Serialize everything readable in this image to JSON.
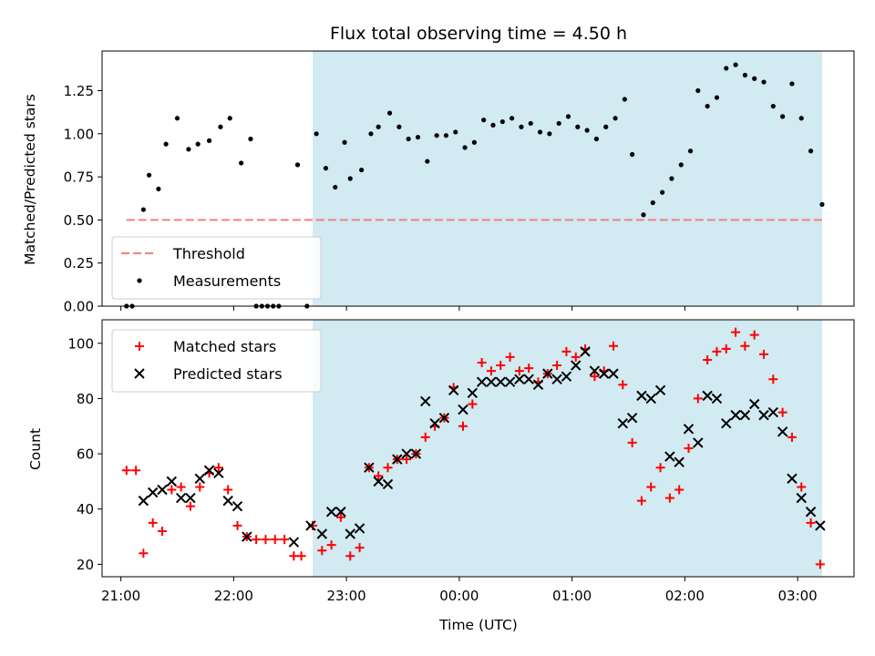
{
  "chart_data": [
    {
      "type": "scatter",
      "title": "Flux total observing time = 4.50 h",
      "ylabel": "Matched/Predicted stars",
      "xlabel": "",
      "xlim": [
        "20:50",
        "03:30"
      ],
      "ylim": [
        0,
        1.48
      ],
      "y_ticks": [
        "0.00",
        "0.25",
        "0.50",
        "0.75",
        "1.00",
        "1.25"
      ],
      "highlight_span": {
        "start": "22:42",
        "end": "03:13",
        "color": "#add8e6"
      },
      "legend_position": "lower-left",
      "threshold": {
        "name": "Threshold",
        "value": 0.5,
        "x_start": "21:03",
        "x_end": "03:13",
        "color": "#f08080",
        "style": "dashed"
      },
      "series": [
        {
          "name": "Measurements",
          "color": "#000000",
          "marker": "dot",
          "points": [
            [
              "21:03",
              0.0
            ],
            [
              "21:06",
              0.0
            ],
            [
              "21:12",
              0.56
            ],
            [
              "21:15",
              0.76
            ],
            [
              "21:20",
              0.68
            ],
            [
              "21:24",
              0.94
            ],
            [
              "21:30",
              1.09
            ],
            [
              "21:36",
              0.91
            ],
            [
              "21:41",
              0.94
            ],
            [
              "21:47",
              0.96
            ],
            [
              "21:53",
              1.04
            ],
            [
              "21:58",
              1.09
            ],
            [
              "22:04",
              0.83
            ],
            [
              "22:09",
              0.97
            ],
            [
              "22:12",
              0.0
            ],
            [
              "22:15",
              0.0
            ],
            [
              "22:18",
              0.0
            ],
            [
              "22:21",
              0.0
            ],
            [
              "22:24",
              0.0
            ],
            [
              "22:34",
              0.82
            ],
            [
              "22:39",
              0.0
            ],
            [
              "22:44",
              1.0
            ],
            [
              "22:49",
              0.8
            ],
            [
              "22:54",
              0.69
            ],
            [
              "22:59",
              0.95
            ],
            [
              "23:02",
              0.74
            ],
            [
              "23:08",
              0.79
            ],
            [
              "23:13",
              1.0
            ],
            [
              "23:17",
              1.04
            ],
            [
              "23:23",
              1.12
            ],
            [
              "23:28",
              1.04
            ],
            [
              "23:33",
              0.97
            ],
            [
              "23:38",
              0.98
            ],
            [
              "23:43",
              0.84
            ],
            [
              "23:48",
              0.99
            ],
            [
              "23:53",
              0.99
            ],
            [
              "23:58",
              1.01
            ],
            [
              "00:03",
              0.92
            ],
            [
              "00:08",
              0.95
            ],
            [
              "00:13",
              1.08
            ],
            [
              "00:18",
              1.05
            ],
            [
              "00:23",
              1.07
            ],
            [
              "00:28",
              1.09
            ],
            [
              "00:33",
              1.04
            ],
            [
              "00:38",
              1.06
            ],
            [
              "00:43",
              1.01
            ],
            [
              "00:48",
              1.0
            ],
            [
              "00:53",
              1.06
            ],
            [
              "00:58",
              1.1
            ],
            [
              "01:03",
              1.04
            ],
            [
              "01:08",
              1.02
            ],
            [
              "01:13",
              0.97
            ],
            [
              "01:18",
              1.04
            ],
            [
              "01:23",
              1.09
            ],
            [
              "01:28",
              1.2
            ],
            [
              "01:32",
              0.88
            ],
            [
              "01:38",
              0.53
            ],
            [
              "01:43",
              0.6
            ],
            [
              "01:48",
              0.66
            ],
            [
              "01:53",
              0.74
            ],
            [
              "01:58",
              0.82
            ],
            [
              "02:03",
              0.9
            ],
            [
              "02:07",
              1.25
            ],
            [
              "02:12",
              1.16
            ],
            [
              "02:17",
              1.21
            ],
            [
              "02:22",
              1.38
            ],
            [
              "02:27",
              1.4
            ],
            [
              "02:32",
              1.34
            ],
            [
              "02:37",
              1.32
            ],
            [
              "02:42",
              1.3
            ],
            [
              "02:47",
              1.16
            ],
            [
              "02:52",
              1.1
            ],
            [
              "02:57",
              1.29
            ],
            [
              "03:02",
              1.09
            ],
            [
              "03:07",
              0.9
            ],
            [
              "03:13",
              0.59
            ]
          ]
        }
      ]
    },
    {
      "type": "scatter",
      "title": "",
      "ylabel": "Count",
      "xlabel": "Time (UTC)",
      "xlim": [
        "20:50",
        "03:30"
      ],
      "ylim": [
        15.5,
        108.5
      ],
      "y_ticks": [
        "20",
        "40",
        "60",
        "80",
        "100"
      ],
      "x_ticks": [
        "21:00",
        "22:00",
        "23:00",
        "00:00",
        "01:00",
        "02:00",
        "03:00"
      ],
      "highlight_span": {
        "start": "22:42",
        "end": "03:13",
        "color": "#add8e6"
      },
      "legend_position": "top-left",
      "series": [
        {
          "name": "Matched stars",
          "color": "#ff0000",
          "marker": "plus",
          "points": [
            [
              "21:03",
              54
            ],
            [
              "21:08",
              54
            ],
            [
              "21:12",
              24
            ],
            [
              "21:17",
              35
            ],
            [
              "21:22",
              32
            ],
            [
              "21:27",
              47
            ],
            [
              "21:32",
              48
            ],
            [
              "21:37",
              41
            ],
            [
              "21:42",
              48
            ],
            [
              "21:47",
              53
            ],
            [
              "21:52",
              55
            ],
            [
              "21:57",
              47
            ],
            [
              "22:02",
              34
            ],
            [
              "22:07",
              30
            ],
            [
              "22:12",
              29
            ],
            [
              "22:17",
              29
            ],
            [
              "22:22",
              29
            ],
            [
              "22:27",
              29
            ],
            [
              "22:32",
              23
            ],
            [
              "22:36",
              23
            ],
            [
              "22:42",
              34
            ],
            [
              "22:47",
              25
            ],
            [
              "22:52",
              27
            ],
            [
              "22:57",
              37
            ],
            [
              "23:02",
              23
            ],
            [
              "23:07",
              26
            ],
            [
              "23:12",
              55
            ],
            [
              "23:17",
              52
            ],
            [
              "23:22",
              55
            ],
            [
              "23:27",
              58
            ],
            [
              "23:32",
              58
            ],
            [
              "23:37",
              60
            ],
            [
              "23:42",
              66
            ],
            [
              "23:47",
              70
            ],
            [
              "23:52",
              73
            ],
            [
              "23:57",
              84
            ],
            [
              "00:02",
              70
            ],
            [
              "00:07",
              78
            ],
            [
              "00:12",
              93
            ],
            [
              "00:17",
              90
            ],
            [
              "00:22",
              92
            ],
            [
              "00:27",
              95
            ],
            [
              "00:32",
              90
            ],
            [
              "00:37",
              91
            ],
            [
              "00:42",
              86
            ],
            [
              "00:47",
              89
            ],
            [
              "00:52",
              92
            ],
            [
              "00:57",
              97
            ],
            [
              "01:02",
              95
            ],
            [
              "01:07",
              98
            ],
            [
              "01:12",
              88
            ],
            [
              "01:17",
              90
            ],
            [
              "01:22",
              99
            ],
            [
              "01:27",
              85
            ],
            [
              "01:32",
              64
            ],
            [
              "01:37",
              43
            ],
            [
              "01:42",
              48
            ],
            [
              "01:47",
              55
            ],
            [
              "01:52",
              44
            ],
            [
              "01:57",
              47
            ],
            [
              "02:02",
              62
            ],
            [
              "02:07",
              80
            ],
            [
              "02:12",
              94
            ],
            [
              "02:17",
              97
            ],
            [
              "02:22",
              98
            ],
            [
              "02:27",
              104
            ],
            [
              "02:32",
              99
            ],
            [
              "02:37",
              103
            ],
            [
              "02:42",
              96
            ],
            [
              "02:47",
              87
            ],
            [
              "02:52",
              75
            ],
            [
              "02:57",
              66
            ],
            [
              "03:02",
              48
            ],
            [
              "03:07",
              35
            ],
            [
              "03:12",
              20
            ]
          ]
        },
        {
          "name": "Predicted stars",
          "color": "#000000",
          "marker": "x",
          "points": [
            [
              "21:12",
              43
            ],
            [
              "21:17",
              46
            ],
            [
              "21:22",
              47
            ],
            [
              "21:27",
              50
            ],
            [
              "21:32",
              44
            ],
            [
              "21:37",
              44
            ],
            [
              "21:42",
              51
            ],
            [
              "21:47",
              54
            ],
            [
              "21:52",
              53
            ],
            [
              "21:57",
              43
            ],
            [
              "22:02",
              41
            ],
            [
              "22:07",
              30
            ],
            [
              "22:32",
              28
            ],
            [
              "22:41",
              34
            ],
            [
              "22:47",
              31
            ],
            [
              "22:52",
              39
            ],
            [
              "22:57",
              39
            ],
            [
              "23:02",
              31
            ],
            [
              "23:07",
              33
            ],
            [
              "23:12",
              55
            ],
            [
              "23:17",
              50
            ],
            [
              "23:22",
              49
            ],
            [
              "23:27",
              58
            ],
            [
              "23:32",
              60
            ],
            [
              "23:37",
              60
            ],
            [
              "23:42",
              79
            ],
            [
              "23:47",
              71
            ],
            [
              "23:52",
              73
            ],
            [
              "23:57",
              83
            ],
            [
              "00:02",
              76
            ],
            [
              "00:07",
              82
            ],
            [
              "00:12",
              86
            ],
            [
              "00:17",
              86
            ],
            [
              "00:22",
              86
            ],
            [
              "00:27",
              86
            ],
            [
              "00:32",
              87
            ],
            [
              "00:37",
              87
            ],
            [
              "00:42",
              85
            ],
            [
              "00:47",
              89
            ],
            [
              "00:52",
              87
            ],
            [
              "00:57",
              88
            ],
            [
              "01:02",
              92
            ],
            [
              "01:07",
              97
            ],
            [
              "01:12",
              90
            ],
            [
              "01:17",
              89
            ],
            [
              "01:22",
              89
            ],
            [
              "01:27",
              71
            ],
            [
              "01:32",
              73
            ],
            [
              "01:37",
              81
            ],
            [
              "01:42",
              80
            ],
            [
              "01:47",
              83
            ],
            [
              "01:52",
              59
            ],
            [
              "01:57",
              57
            ],
            [
              "02:02",
              69
            ],
            [
              "02:07",
              64
            ],
            [
              "02:12",
              81
            ],
            [
              "02:17",
              80
            ],
            [
              "02:22",
              71
            ],
            [
              "02:27",
              74
            ],
            [
              "02:32",
              74
            ],
            [
              "02:37",
              78
            ],
            [
              "02:42",
              74
            ],
            [
              "02:47",
              75
            ],
            [
              "02:52",
              68
            ],
            [
              "02:57",
              51
            ],
            [
              "03:02",
              44
            ],
            [
              "03:07",
              39
            ],
            [
              "03:12",
              34
            ]
          ]
        }
      ]
    }
  ]
}
